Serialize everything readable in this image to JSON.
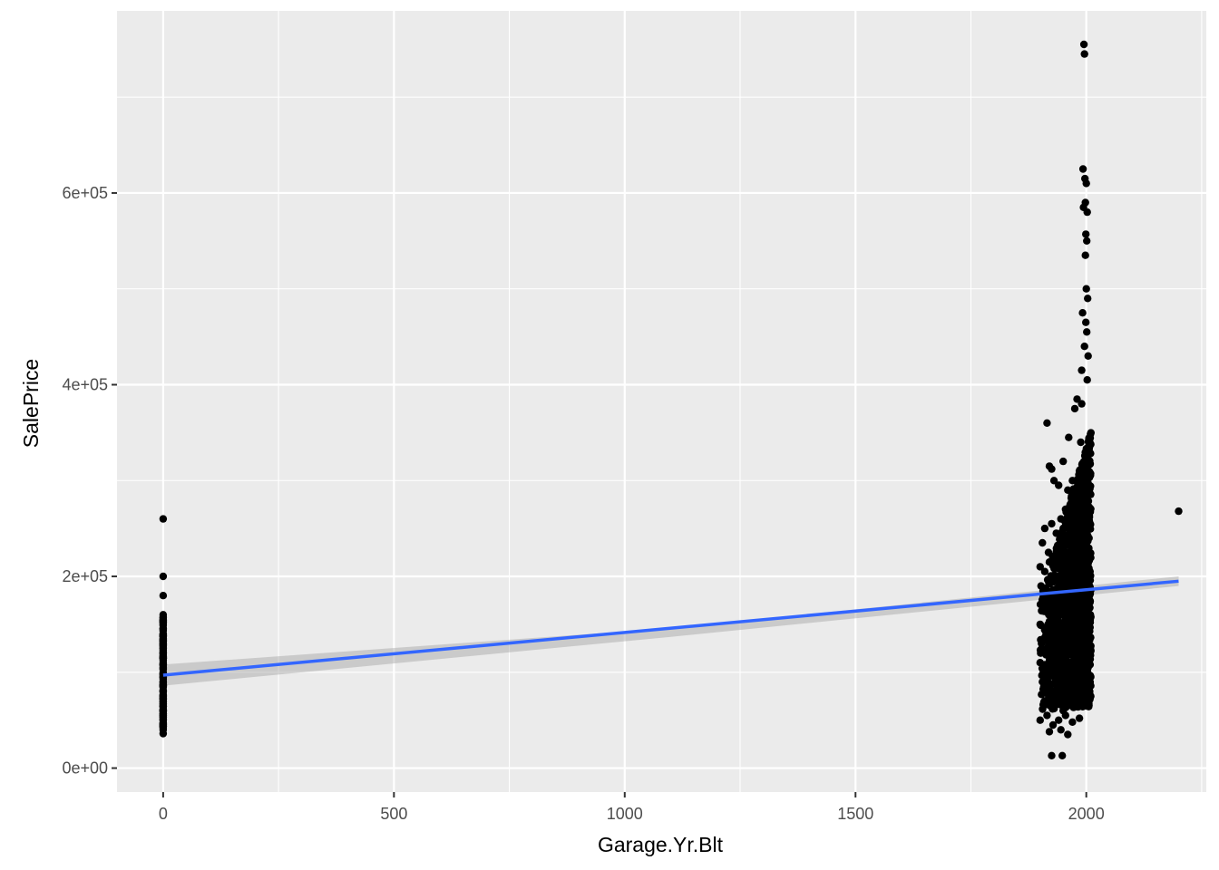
{
  "chart_data": {
    "type": "scatter",
    "title": "",
    "xlabel": "Garage.Yr.Blt",
    "ylabel": "SalePrice",
    "xlim": [
      -100,
      2260
    ],
    "ylim": [
      -25000,
      790000
    ],
    "x_ticks": [
      {
        "value": 0,
        "label": "0"
      },
      {
        "value": 500,
        "label": "500"
      },
      {
        "value": 1000,
        "label": "1000"
      },
      {
        "value": 1500,
        "label": "1500"
      },
      {
        "value": 2000,
        "label": "2000"
      }
    ],
    "y_ticks": [
      {
        "value": 0,
        "label": "0e+00"
      },
      {
        "value": 200000,
        "label": "2e+05"
      },
      {
        "value": 400000,
        "label": "4e+05"
      },
      {
        "value": 600000,
        "label": "6e+05"
      }
    ],
    "grid": true,
    "background": "#ebebeb",
    "point_color": "#000000",
    "points": [
      {
        "x": 0,
        "y": 260000
      },
      {
        "x": 0,
        "y": 200000
      },
      {
        "x": 0,
        "y": 180000
      },
      {
        "x": 0,
        "y": 160000
      },
      {
        "x": 0,
        "y": 150000
      },
      {
        "x": 0,
        "y": 145000
      },
      {
        "x": 0,
        "y": 140000
      },
      {
        "x": 0,
        "y": 135000
      },
      {
        "x": 0,
        "y": 130000
      },
      {
        "x": 0,
        "y": 125000
      },
      {
        "x": 0,
        "y": 120000
      },
      {
        "x": 0,
        "y": 115000
      },
      {
        "x": 0,
        "y": 110000
      },
      {
        "x": 0,
        "y": 105000
      },
      {
        "x": 0,
        "y": 100000
      },
      {
        "x": 0,
        "y": 95000
      },
      {
        "x": 0,
        "y": 90000
      },
      {
        "x": 0,
        "y": 85000
      },
      {
        "x": 0,
        "y": 80000
      },
      {
        "x": 0,
        "y": 75000
      },
      {
        "x": 0,
        "y": 70000
      },
      {
        "x": 0,
        "y": 65000
      },
      {
        "x": 0,
        "y": 60000
      },
      {
        "x": 0,
        "y": 55000
      },
      {
        "x": 0,
        "y": 50000
      },
      {
        "x": 0,
        "y": 45000
      },
      {
        "x": 0,
        "y": 40000
      },
      {
        "x": 0,
        "y": 36000
      },
      {
        "x": 1995,
        "y": 755000
      },
      {
        "x": 1996,
        "y": 745000
      },
      {
        "x": 1993,
        "y": 625000
      },
      {
        "x": 1997,
        "y": 615000
      },
      {
        "x": 2000,
        "y": 610000
      },
      {
        "x": 1998,
        "y": 590000
      },
      {
        "x": 1994,
        "y": 585000
      },
      {
        "x": 2002,
        "y": 580000
      },
      {
        "x": 1999,
        "y": 557000
      },
      {
        "x": 2001,
        "y": 550000
      },
      {
        "x": 1998,
        "y": 535000
      },
      {
        "x": 2000,
        "y": 500000
      },
      {
        "x": 2003,
        "y": 490000
      },
      {
        "x": 1992,
        "y": 475000
      },
      {
        "x": 1999,
        "y": 465000
      },
      {
        "x": 2001,
        "y": 455000
      },
      {
        "x": 1996,
        "y": 440000
      },
      {
        "x": 2004,
        "y": 430000
      },
      {
        "x": 1990,
        "y": 415000
      },
      {
        "x": 2002,
        "y": 405000
      },
      {
        "x": 1980,
        "y": 385000
      },
      {
        "x": 1975,
        "y": 375000
      },
      {
        "x": 1990,
        "y": 380000
      },
      {
        "x": 1915,
        "y": 360000
      },
      {
        "x": 1962,
        "y": 345000
      },
      {
        "x": 1988,
        "y": 340000
      },
      {
        "x": 1920,
        "y": 315000
      },
      {
        "x": 1925,
        "y": 312000
      },
      {
        "x": 1950,
        "y": 320000
      },
      {
        "x": 1930,
        "y": 300000
      },
      {
        "x": 1940,
        "y": 295000
      },
      {
        "x": 1960,
        "y": 290000
      },
      {
        "x": 1970,
        "y": 300000
      },
      {
        "x": 1985,
        "y": 310000
      },
      {
        "x": 2005,
        "y": 305000
      },
      {
        "x": 2200,
        "y": 268000
      },
      {
        "x": 1910,
        "y": 250000
      },
      {
        "x": 1925,
        "y": 255000
      },
      {
        "x": 1935,
        "y": 245000
      },
      {
        "x": 1945,
        "y": 260000
      },
      {
        "x": 1955,
        "y": 270000
      },
      {
        "x": 1965,
        "y": 275000
      },
      {
        "x": 1975,
        "y": 265000
      },
      {
        "x": 1995,
        "y": 280000
      },
      {
        "x": 1905,
        "y": 235000
      },
      {
        "x": 1918,
        "y": 225000
      },
      {
        "x": 1930,
        "y": 220000
      },
      {
        "x": 1940,
        "y": 230000
      },
      {
        "x": 1950,
        "y": 240000
      },
      {
        "x": 1960,
        "y": 235000
      },
      {
        "x": 1980,
        "y": 245000
      },
      {
        "x": 2000,
        "y": 250000
      },
      {
        "x": 2006,
        "y": 240000
      },
      {
        "x": 1900,
        "y": 210000
      },
      {
        "x": 1910,
        "y": 205000
      },
      {
        "x": 1920,
        "y": 215000
      },
      {
        "x": 1935,
        "y": 200000
      },
      {
        "x": 1945,
        "y": 210000
      },
      {
        "x": 1955,
        "y": 205000
      },
      {
        "x": 1965,
        "y": 215000
      },
      {
        "x": 1978,
        "y": 220000
      },
      {
        "x": 1990,
        "y": 225000
      },
      {
        "x": 2003,
        "y": 210000
      },
      {
        "x": 2008,
        "y": 205000
      },
      {
        "x": 1902,
        "y": 190000
      },
      {
        "x": 1915,
        "y": 185000
      },
      {
        "x": 1928,
        "y": 195000
      },
      {
        "x": 1940,
        "y": 180000
      },
      {
        "x": 1952,
        "y": 190000
      },
      {
        "x": 1968,
        "y": 185000
      },
      {
        "x": 1982,
        "y": 195000
      },
      {
        "x": 1998,
        "y": 190000
      },
      {
        "x": 2007,
        "y": 180000
      },
      {
        "x": 1905,
        "y": 170000
      },
      {
        "x": 1918,
        "y": 165000
      },
      {
        "x": 1932,
        "y": 175000
      },
      {
        "x": 1948,
        "y": 160000
      },
      {
        "x": 1958,
        "y": 170000
      },
      {
        "x": 1972,
        "y": 165000
      },
      {
        "x": 1988,
        "y": 175000
      },
      {
        "x": 2002,
        "y": 170000
      },
      {
        "x": 1900,
        "y": 150000
      },
      {
        "x": 1912,
        "y": 145000
      },
      {
        "x": 1925,
        "y": 155000
      },
      {
        "x": 1938,
        "y": 140000
      },
      {
        "x": 1950,
        "y": 150000
      },
      {
        "x": 1962,
        "y": 145000
      },
      {
        "x": 1976,
        "y": 155000
      },
      {
        "x": 1992,
        "y": 150000
      },
      {
        "x": 2005,
        "y": 145000
      },
      {
        "x": 1903,
        "y": 130000
      },
      {
        "x": 1916,
        "y": 125000
      },
      {
        "x": 1930,
        "y": 135000
      },
      {
        "x": 1944,
        "y": 120000
      },
      {
        "x": 1956,
        "y": 130000
      },
      {
        "x": 1970,
        "y": 125000
      },
      {
        "x": 1986,
        "y": 135000
      },
      {
        "x": 2000,
        "y": 130000
      },
      {
        "x": 1900,
        "y": 110000
      },
      {
        "x": 1910,
        "y": 105000
      },
      {
        "x": 1922,
        "y": 115000
      },
      {
        "x": 1936,
        "y": 100000
      },
      {
        "x": 1948,
        "y": 110000
      },
      {
        "x": 1960,
        "y": 105000
      },
      {
        "x": 1974,
        "y": 115000
      },
      {
        "x": 1990,
        "y": 110000
      },
      {
        "x": 2004,
        "y": 105000
      },
      {
        "x": 1905,
        "y": 90000
      },
      {
        "x": 1918,
        "y": 85000
      },
      {
        "x": 1932,
        "y": 95000
      },
      {
        "x": 1946,
        "y": 80000
      },
      {
        "x": 1958,
        "y": 90000
      },
      {
        "x": 1972,
        "y": 85000
      },
      {
        "x": 1985,
        "y": 95000
      },
      {
        "x": 1998,
        "y": 80000
      },
      {
        "x": 1910,
        "y": 70000
      },
      {
        "x": 1922,
        "y": 65000
      },
      {
        "x": 1935,
        "y": 75000
      },
      {
        "x": 1950,
        "y": 60000
      },
      {
        "x": 1965,
        "y": 70000
      },
      {
        "x": 1980,
        "y": 65000
      },
      {
        "x": 1996,
        "y": 75000
      },
      {
        "x": 1900,
        "y": 50000
      },
      {
        "x": 1915,
        "y": 55000
      },
      {
        "x": 1928,
        "y": 45000
      },
      {
        "x": 1940,
        "y": 50000
      },
      {
        "x": 1955,
        "y": 55000
      },
      {
        "x": 1970,
        "y": 48000
      },
      {
        "x": 1985,
        "y": 52000
      },
      {
        "x": 1920,
        "y": 38000
      },
      {
        "x": 1945,
        "y": 40000
      },
      {
        "x": 1960,
        "y": 35000
      },
      {
        "x": 1925,
        "y": 13000
      },
      {
        "x": 1948,
        "y": 13000
      }
    ],
    "trend_line": {
      "color": "#3366ff",
      "start": {
        "x": 0,
        "y": 97000
      },
      "end": {
        "x": 2200,
        "y": 195000
      },
      "ci_start": [
        86000,
        108000
      ],
      "ci_mid": [
        137000,
        146000
      ],
      "ci_end": [
        190000,
        200000
      ]
    }
  }
}
